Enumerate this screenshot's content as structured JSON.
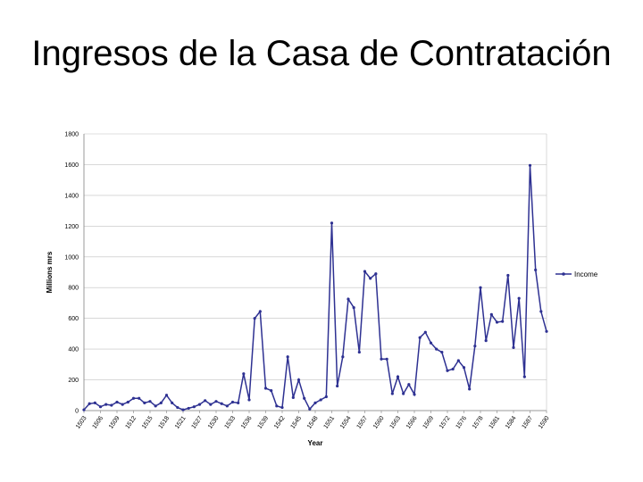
{
  "slide": {
    "title": "Ingresos de la Casa de Contratación"
  },
  "chart_data": {
    "type": "line",
    "xlabel": "Year",
    "ylabel": "Millions mrs",
    "ylim": [
      0,
      1800
    ],
    "yticks": [
      0,
      200,
      400,
      600,
      800,
      1000,
      1200,
      1400,
      1600,
      1800
    ],
    "x_tick_labels": [
      "1503",
      "1506",
      "1509",
      "1512",
      "1515",
      "1518",
      "1521",
      "1527",
      "1530",
      "1533",
      "1536",
      "1539",
      "1542",
      "1545",
      "1548",
      "1551",
      "1554",
      "1557",
      "1560",
      "1563",
      "1566",
      "1569",
      "1572",
      "1576",
      "1578",
      "1581",
      "1584",
      "1587",
      "1590"
    ],
    "grid": "horizontal",
    "legend_position": "right",
    "colors": {
      "series": "#2e3192",
      "grid": "#c0c0c0",
      "axis": "#808080"
    },
    "series": [
      {
        "name": "Income",
        "values": [
          5,
          45,
          50,
          25,
          40,
          35,
          55,
          40,
          55,
          80,
          80,
          50,
          60,
          30,
          50,
          100,
          50,
          20,
          5,
          15,
          25,
          40,
          65,
          40,
          60,
          45,
          30,
          55,
          50,
          240,
          70,
          600,
          645,
          145,
          130,
          30,
          20,
          350,
          85,
          200,
          80,
          10,
          50,
          70,
          90,
          1220,
          160,
          350,
          725,
          670,
          380,
          905,
          860,
          890,
          335,
          335,
          110,
          220,
          110,
          170,
          105,
          475,
          510,
          440,
          400,
          380,
          260,
          270,
          325,
          280,
          140,
          420,
          800,
          455,
          625,
          575,
          580,
          880,
          410,
          730,
          220,
          1595,
          915,
          645,
          515
        ]
      }
    ]
  }
}
